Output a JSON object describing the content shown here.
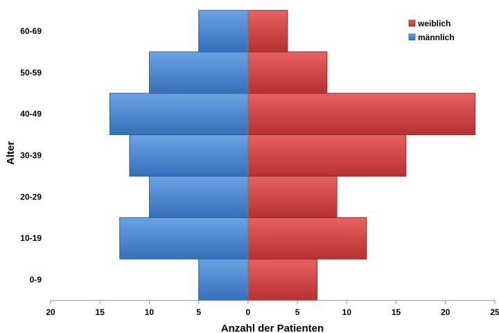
{
  "chart_data": {
    "type": "bar",
    "orientation": "horizontal",
    "layout": "population-pyramid",
    "categories": [
      "0-9",
      "10-19",
      "20-29",
      "30-39",
      "40-49",
      "50-59",
      "60-69"
    ],
    "series": [
      {
        "name": "weiblich",
        "side": "right",
        "color": "#d64545",
        "values": [
          7,
          12,
          9,
          16,
          23,
          8,
          4
        ]
      },
      {
        "name": "männlich",
        "side": "left",
        "color": "#4a86cf",
        "values": [
          5,
          13,
          10,
          12,
          14,
          10,
          5
        ]
      }
    ],
    "xlabel": "Anzahl der Patienten",
    "ylabel": "Alter",
    "xlim": [
      -20,
      25
    ],
    "xticks": [
      -20,
      -15,
      -10,
      -5,
      0,
      5,
      10,
      15,
      20,
      25
    ],
    "xtick_labels": [
      "20",
      "15",
      "10",
      "5",
      "0",
      "5",
      "10",
      "15",
      "20",
      "25"
    ],
    "grid": false,
    "legend_position": "top-right"
  }
}
